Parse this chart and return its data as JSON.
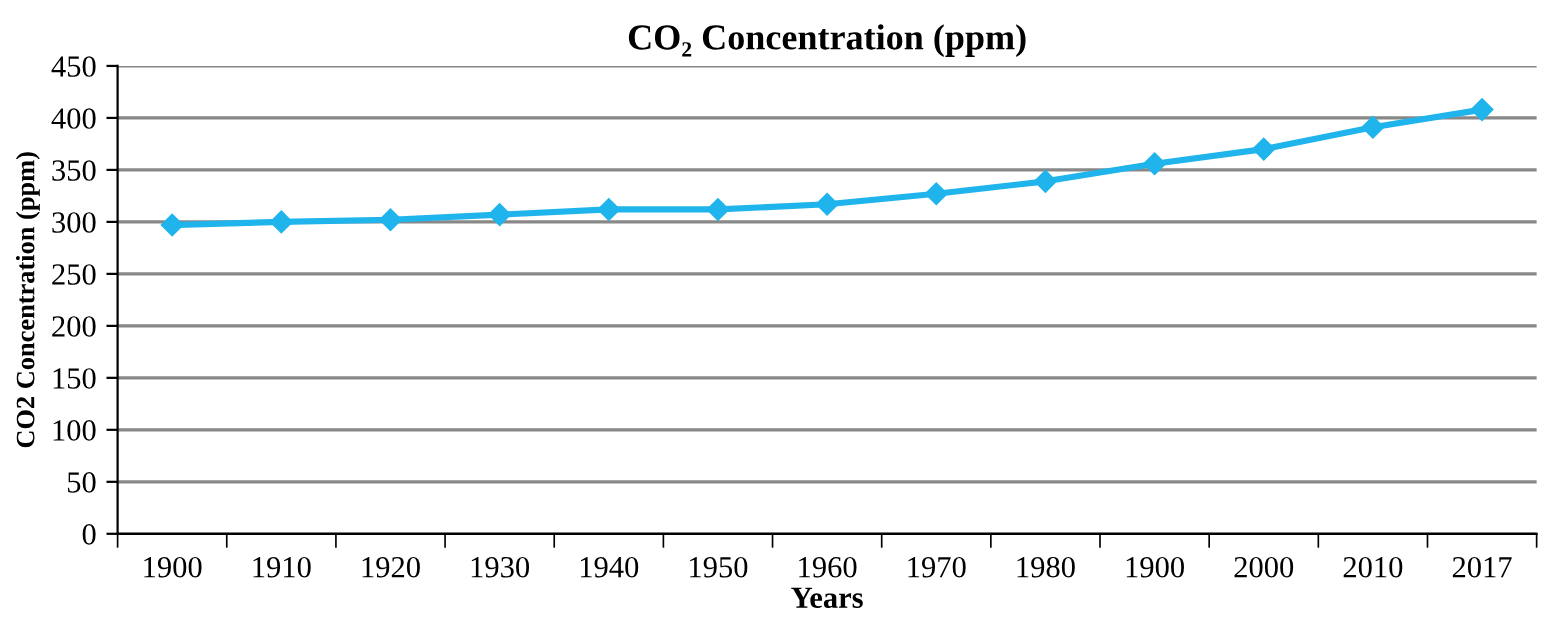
{
  "chart_data": {
    "type": "line",
    "title": "CO₂ Concentration (ppm)",
    "xlabel": "Years",
    "ylabel": "CO2 Concentration (ppm)",
    "categories": [
      "1900",
      "1910",
      "1920",
      "1930",
      "1940",
      "1950",
      "1960",
      "1970",
      "1980",
      "1900",
      "2000",
      "2010",
      "2017"
    ],
    "series": [
      {
        "color": "#1fb4ec",
        "values": [
          297,
          300,
          302,
          307,
          312,
          312,
          317,
          327,
          339,
          356,
          370,
          391,
          408
        ]
      }
    ],
    "ylim": [
      0,
      450
    ],
    "yticks": [
      0,
      50,
      100,
      150,
      200,
      250,
      300,
      350,
      400,
      450
    ],
    "grid": "y",
    "marker": "diamond",
    "line_style": "solid"
  }
}
